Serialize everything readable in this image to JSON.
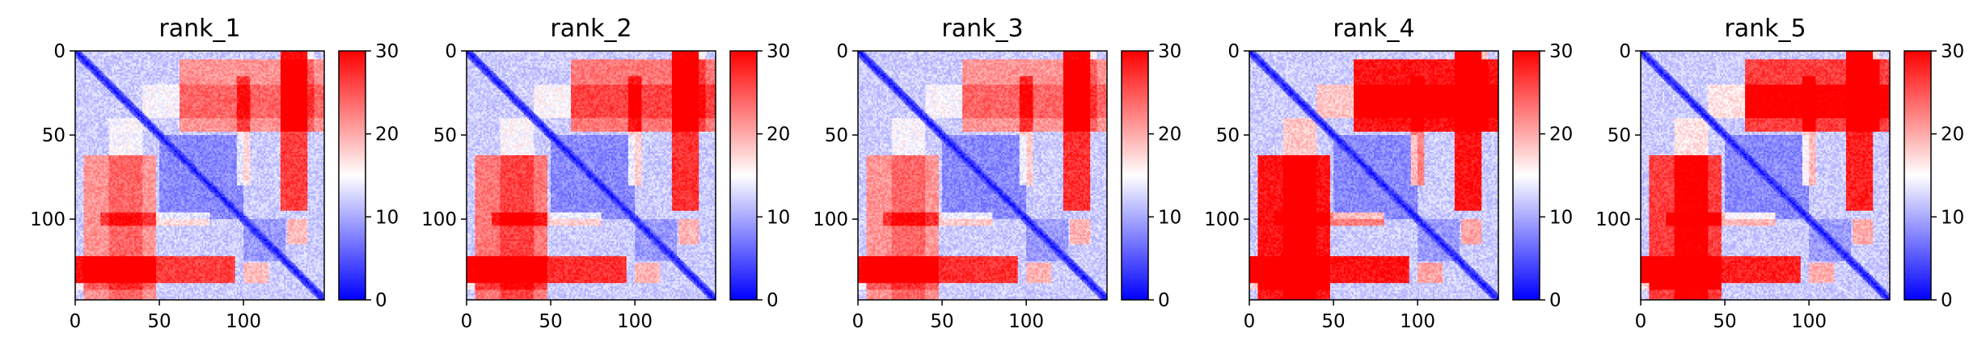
{
  "figure": {
    "background": "#ffffff"
  },
  "colormap": {
    "name": "bwr",
    "low": "#0000ff",
    "mid": "#ffffff",
    "high": "#ff0000",
    "vmin": 0,
    "vmax": 30,
    "ticks": [
      "0",
      "10",
      "20",
      "30"
    ]
  },
  "chart_data": [
    {
      "type": "heatmap",
      "title": "rank_1",
      "xlabel": "",
      "ylabel": "",
      "xlim": [
        0,
        148
      ],
      "ylim": [
        148,
        0
      ],
      "xticks": [
        "0",
        "50",
        "100"
      ],
      "yticks": [
        "0",
        "50",
        "100"
      ],
      "block_strength": [
        0.55,
        0.45,
        0.8,
        0.7,
        0.35
      ],
      "colorbar_ticks": [
        "0",
        "10",
        "20",
        "30"
      ]
    },
    {
      "type": "heatmap",
      "title": "rank_2",
      "xlabel": "",
      "ylabel": "",
      "xlim": [
        0,
        148
      ],
      "ylim": [
        148,
        0
      ],
      "xticks": [
        "0",
        "50",
        "100"
      ],
      "yticks": [
        "0",
        "50",
        "100"
      ],
      "block_strength": [
        0.65,
        0.5,
        0.85,
        0.75,
        0.4
      ],
      "colorbar_ticks": [
        "0",
        "10",
        "20",
        "30"
      ]
    },
    {
      "type": "heatmap",
      "title": "rank_3",
      "xlabel": "",
      "ylabel": "",
      "xlim": [
        0,
        148
      ],
      "ylim": [
        148,
        0
      ],
      "xticks": [
        "0",
        "50",
        "100"
      ],
      "yticks": [
        "0",
        "50",
        "100"
      ],
      "block_strength": [
        0.55,
        0.5,
        0.85,
        0.75,
        0.35
      ],
      "colorbar_ticks": [
        "0",
        "10",
        "20",
        "30"
      ]
    },
    {
      "type": "heatmap",
      "title": "rank_4",
      "xlabel": "",
      "ylabel": "",
      "xlim": [
        0,
        148
      ],
      "ylim": [
        148,
        0
      ],
      "xticks": [
        "0",
        "50",
        "100"
      ],
      "yticks": [
        "0",
        "50",
        "100"
      ],
      "block_strength": [
        1.0,
        0.9,
        0.95,
        0.85,
        0.8
      ],
      "colorbar_ticks": [
        "0",
        "10",
        "20",
        "30"
      ]
    },
    {
      "type": "heatmap",
      "title": "rank_5",
      "xlabel": "",
      "ylabel": "",
      "xlim": [
        0,
        148
      ],
      "ylim": [
        148,
        0
      ],
      "xticks": [
        "0",
        "50",
        "100"
      ],
      "yticks": [
        "0",
        "50",
        "100"
      ],
      "block_strength": [
        0.85,
        0.6,
        0.9,
        0.8,
        0.6
      ],
      "colorbar_ticks": [
        "0",
        "10",
        "20",
        "30"
      ]
    }
  ]
}
